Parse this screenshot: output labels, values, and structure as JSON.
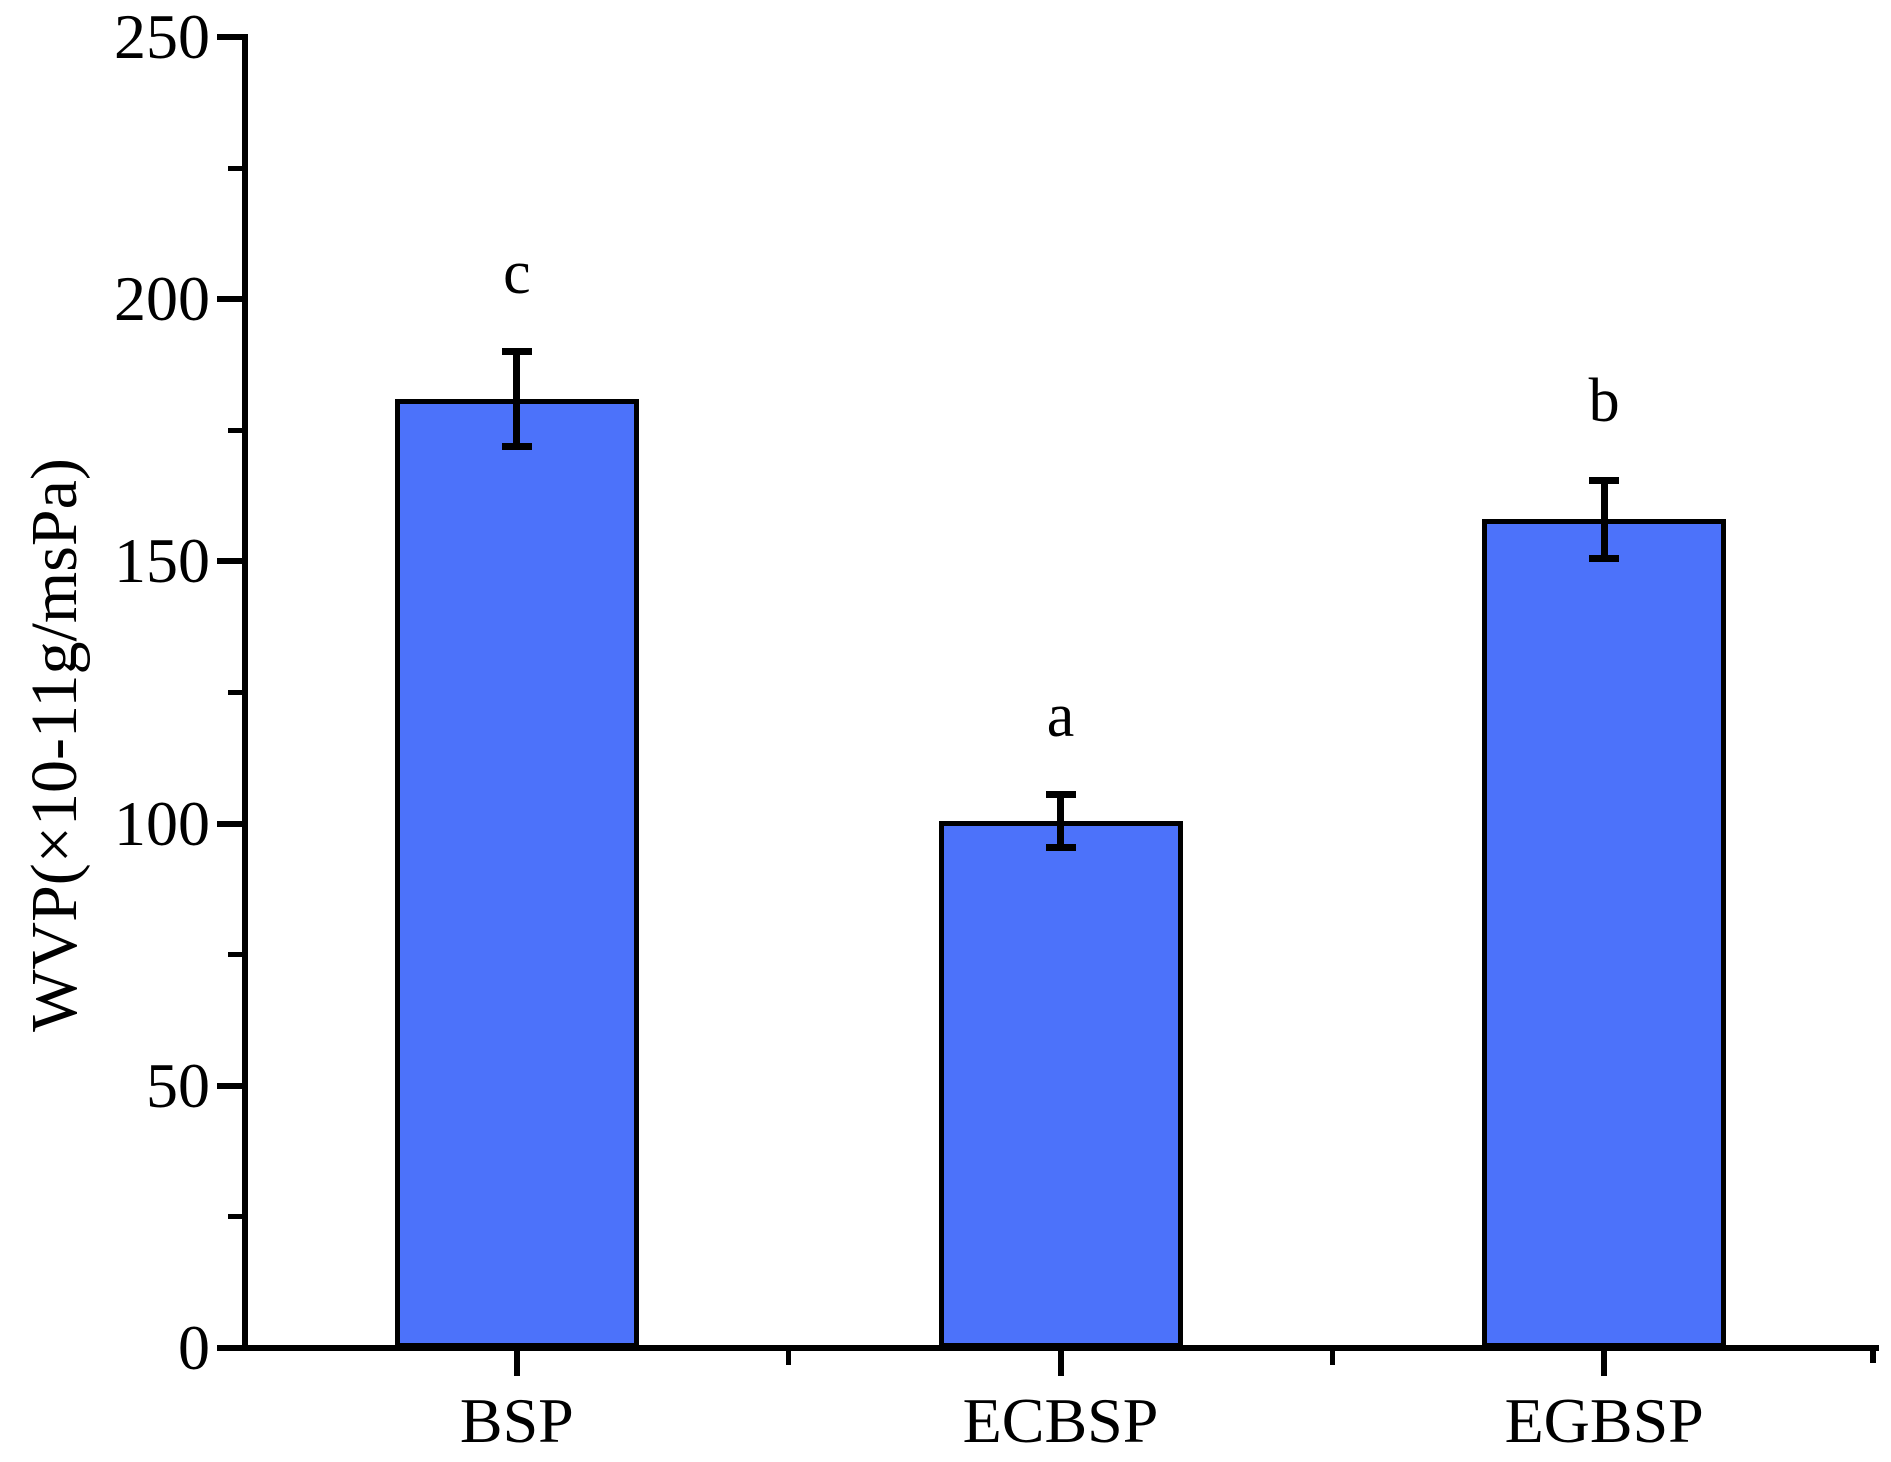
{
  "chart_data": {
    "type": "bar",
    "title": "",
    "categories": [
      "BSP",
      "ECBSP",
      "EGBSP"
    ],
    "values": [
      181,
      100.5,
      158
    ],
    "errors": [
      9,
      5,
      7.5
    ],
    "sig_letters": [
      "c",
      "a",
      "b"
    ],
    "ylabel": "WVP(×10-11g/msPa)",
    "xlabel": "",
    "ylim": [
      0,
      250
    ],
    "yticks": [
      0,
      50,
      100,
      150,
      200,
      250
    ],
    "yminor_ticks": [
      25,
      75,
      125,
      175,
      225
    ],
    "grid": false,
    "legend": "none",
    "bar_color": "#4C72FA",
    "bar_border_color": "#000000",
    "axis_color": "#000000",
    "background_color": "#FFFFFF"
  }
}
